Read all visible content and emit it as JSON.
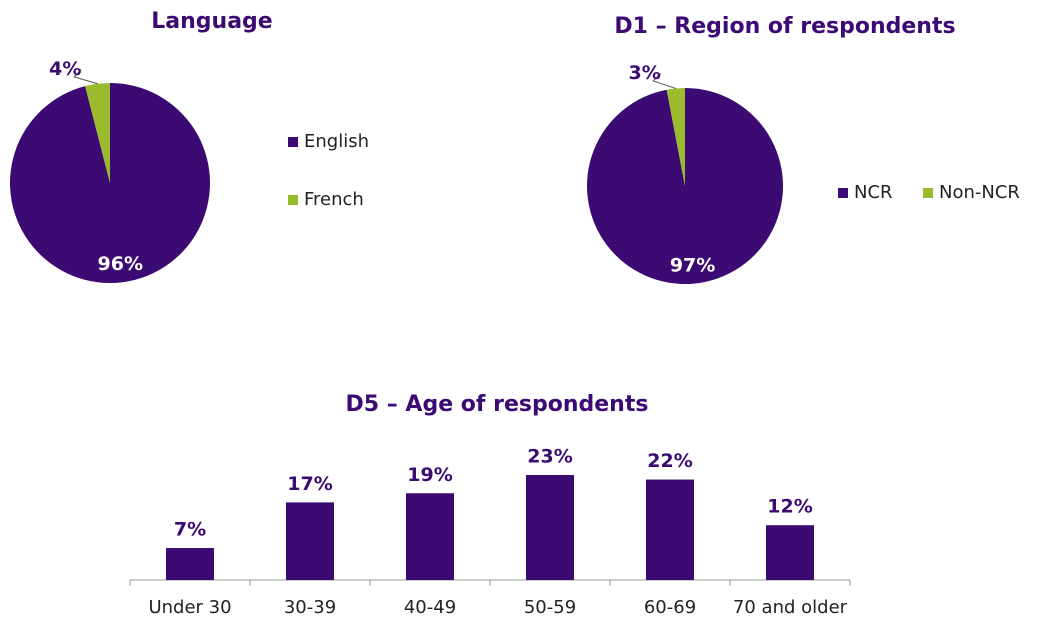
{
  "chart_data": [
    {
      "type": "pie",
      "title": "Language",
      "categories": [
        "English",
        "French"
      ],
      "values": [
        96,
        4
      ],
      "value_labels": [
        "96%",
        "4%"
      ],
      "colors": [
        "#3b0a72",
        "#9bbb2e"
      ],
      "legend": "right"
    },
    {
      "type": "pie",
      "title": "D1 – Region of respondents",
      "categories": [
        "NCR",
        "Non-NCR"
      ],
      "values": [
        97,
        3
      ],
      "value_labels": [
        "97%",
        "3%"
      ],
      "colors": [
        "#3b0a72",
        "#9bbb2e"
      ],
      "legend": "bottom-right"
    },
    {
      "type": "bar",
      "title": "D5 – Age of respondents",
      "categories": [
        "Under 30",
        "30-39",
        "40-49",
        "50-59",
        "60-69",
        "70 and older"
      ],
      "values": [
        7,
        17,
        19,
        23,
        22,
        12
      ],
      "value_labels": [
        "7%",
        "17%",
        "19%",
        "23%",
        "22%",
        "12%"
      ],
      "color": "#3b0a72"
    }
  ]
}
